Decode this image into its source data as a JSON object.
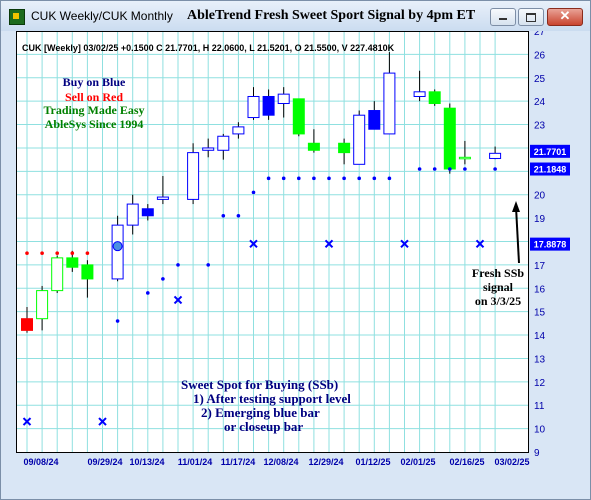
{
  "window": {
    "title": "CUK Weekly/CUK Monthly",
    "chart_title": "AbleTrend Fresh Sweet Sport Signal by 4pm ET",
    "close_glyph": "✕"
  },
  "colors": {
    "background": "#ffffff",
    "grid": "#8fe0e0",
    "blue": "#0000ff",
    "green": "#00ff00",
    "red": "#ff0000",
    "frame": "#000000",
    "text_navy": "#000080",
    "text_green": "#008000",
    "text_red": "#ff0000",
    "axis_label": "#0000aa"
  },
  "info_line": "CUK [Weekly] 03/02/25 +0.1500 C 21.7701, H 22.0600, L 21.5201, O 21.5500, V 227.4810K",
  "legend": {
    "line1": "Buy on Blue",
    "line2": "Sell on Red",
    "line3": "Trading Made Easy",
    "line4": "AbleSys Since 1994"
  },
  "annotation_ssb": {
    "line1": "Fresh SSb",
    "line2": "signal",
    "line3": "on 3/3/25"
  },
  "annotation_sweet": {
    "line1": "Sweet Spot for Buying (SSb)",
    "line2": "1) After testing support level",
    "line3": "2) Emerging blue bar",
    "line4": "or closeup bar"
  },
  "chart_data": {
    "type": "candlestick",
    "title": "AbleTrend Fresh Sweet Sport Signal by 4pm ET",
    "symbol": "CUK",
    "ylim": [
      9,
      27
    ],
    "y_ticks": [
      9,
      10,
      11,
      12,
      13,
      14,
      15,
      16,
      17,
      18,
      19,
      20,
      21,
      22,
      23,
      24,
      25,
      26,
      27
    ],
    "x_ticks": [
      "09/08/24",
      "09/29/24",
      "10/13/24",
      "11/01/24",
      "11/17/24",
      "12/08/24",
      "12/29/24",
      "01/12/25",
      "02/01/25",
      "02/16/25",
      "03/02/25"
    ],
    "price_labels": [
      {
        "value": 21.7701,
        "label": "21.7701",
        "color": "#0000ff"
      },
      {
        "value": 21.1848,
        "label": "21.1848",
        "color": "#0000ff"
      },
      {
        "value": 17.8878,
        "label": "17.8878",
        "color": "#0000ff"
      }
    ],
    "candles": [
      {
        "open": 14.2,
        "high": 15.2,
        "low": 14.1,
        "close": 14.7,
        "color": "red",
        "hollow": false
      },
      {
        "open": 14.7,
        "high": 16.1,
        "low": 14.2,
        "close": 15.9,
        "color": "green",
        "hollow": true
      },
      {
        "open": 15.9,
        "high": 17.4,
        "low": 15.8,
        "close": 17.3,
        "color": "green",
        "hollow": true
      },
      {
        "open": 17.3,
        "high": 17.6,
        "low": 16.7,
        "close": 16.9,
        "color": "green",
        "hollow": false
      },
      {
        "open": 17.0,
        "high": 17.2,
        "low": 15.6,
        "close": 16.4,
        "color": "green",
        "hollow": false
      },
      {
        "open": null,
        "high": null,
        "low": null,
        "close": null,
        "color": "none",
        "hollow": true
      },
      {
        "open": 16.4,
        "high": 19.1,
        "low": 16.3,
        "close": 18.7,
        "color": "blue",
        "hollow": true
      },
      {
        "open": 18.7,
        "high": 20.0,
        "low": 18.3,
        "close": 19.6,
        "color": "blue",
        "hollow": true
      },
      {
        "open": 19.1,
        "high": 19.6,
        "low": 18.9,
        "close": 19.4,
        "color": "blue",
        "hollow": false
      },
      {
        "open": 19.8,
        "high": 20.8,
        "low": 19.6,
        "close": 19.9,
        "color": "blue",
        "hollow": true
      },
      {
        "open": null,
        "high": null,
        "low": null,
        "close": null,
        "color": "none",
        "hollow": true
      },
      {
        "open": 19.8,
        "high": 22.2,
        "low": 19.6,
        "close": 21.8,
        "color": "blue",
        "hollow": true
      },
      {
        "open": 21.9,
        "high": 22.4,
        "low": 21.6,
        "close": 22.0,
        "color": "blue",
        "hollow": true
      },
      {
        "open": 21.9,
        "high": 22.6,
        "low": 21.5,
        "close": 22.5,
        "color": "blue",
        "hollow": true
      },
      {
        "open": 22.6,
        "high": 23.1,
        "low": 22.4,
        "close": 22.9,
        "color": "blue",
        "hollow": true
      },
      {
        "open": 23.3,
        "high": 24.6,
        "low": 23.2,
        "close": 24.2,
        "color": "blue",
        "hollow": true
      },
      {
        "open": 24.2,
        "high": 24.5,
        "low": 23.2,
        "close": 23.4,
        "color": "blue",
        "hollow": false
      },
      {
        "open": 23.9,
        "high": 24.6,
        "low": 23.3,
        "close": 24.3,
        "color": "blue",
        "hollow": true
      },
      {
        "open": 24.1,
        "high": 24.1,
        "low": 22.5,
        "close": 22.6,
        "color": "green",
        "hollow": false
      },
      {
        "open": 22.2,
        "high": 22.8,
        "low": 21.8,
        "close": 21.9,
        "color": "green",
        "hollow": false
      },
      {
        "open": null,
        "high": null,
        "low": null,
        "close": null,
        "color": "none",
        "hollow": true
      },
      {
        "open": 22.2,
        "high": 22.4,
        "low": 21.3,
        "close": 21.8,
        "color": "green",
        "hollow": false
      },
      {
        "open": 21.3,
        "high": 23.6,
        "low": 21.3,
        "close": 23.4,
        "color": "blue",
        "hollow": true
      },
      {
        "open": 22.8,
        "high": 24.0,
        "low": 22.8,
        "close": 23.6,
        "color": "blue",
        "hollow": false
      },
      {
        "open": 22.6,
        "high": 26.1,
        "low": 22.6,
        "close": 25.2,
        "color": "blue",
        "hollow": true
      },
      {
        "open": null,
        "high": null,
        "low": null,
        "close": null,
        "color": "none",
        "hollow": true
      },
      {
        "open": 24.2,
        "high": 25.3,
        "low": 24.0,
        "close": 24.4,
        "color": "blue",
        "hollow": true
      },
      {
        "open": 24.4,
        "high": 24.5,
        "low": 23.8,
        "close": 23.9,
        "color": "green",
        "hollow": false
      },
      {
        "open": 23.7,
        "high": 23.9,
        "low": 20.9,
        "close": 21.1,
        "color": "green",
        "hollow": false
      },
      {
        "open": 21.6,
        "high": 22.3,
        "low": 21.3,
        "close": 21.6,
        "color": "green",
        "hollow": true
      },
      {
        "open": null,
        "high": null,
        "low": null,
        "close": null,
        "color": "none",
        "hollow": true
      },
      {
        "open": 21.55,
        "high": 22.06,
        "low": 21.52,
        "close": 21.77,
        "color": "blue",
        "hollow": true
      }
    ],
    "sell_stops_red": [
      {
        "i": 0,
        "y": 17.5
      },
      {
        "i": 1,
        "y": 17.5
      },
      {
        "i": 2,
        "y": 17.5
      },
      {
        "i": 3,
        "y": 17.5
      },
      {
        "i": 4,
        "y": 17.5
      }
    ],
    "support_dots_blue": [
      {
        "i": 6,
        "y": 14.6
      },
      {
        "i": 8,
        "y": 15.8
      },
      {
        "i": 9,
        "y": 16.4
      },
      {
        "i": 10,
        "y": 17.0
      },
      {
        "i": 12,
        "y": 17.0
      },
      {
        "i": 13,
        "y": 19.1
      },
      {
        "i": 14,
        "y": 19.1
      },
      {
        "i": 15,
        "y": 20.1
      },
      {
        "i": 16,
        "y": 20.7
      },
      {
        "i": 17,
        "y": 20.7
      },
      {
        "i": 18,
        "y": 20.7
      },
      {
        "i": 19,
        "y": 20.7
      },
      {
        "i": 20,
        "y": 20.7
      },
      {
        "i": 21,
        "y": 20.7
      },
      {
        "i": 22,
        "y": 20.7
      },
      {
        "i": 23,
        "y": 20.7
      },
      {
        "i": 24,
        "y": 20.7
      },
      {
        "i": 26,
        "y": 21.1
      },
      {
        "i": 27,
        "y": 21.1
      },
      {
        "i": 28,
        "y": 21.1
      },
      {
        "i": 29,
        "y": 21.1
      },
      {
        "i": 31,
        "y": 21.1
      }
    ],
    "x_marks": [
      {
        "i": 0,
        "y": 10.3
      },
      {
        "i": 5,
        "y": 10.3
      },
      {
        "i": 10,
        "y": 15.5
      },
      {
        "i": 15,
        "y": 17.9
      },
      {
        "i": 20,
        "y": 17.9
      },
      {
        "i": 25,
        "y": 17.9
      },
      {
        "i": 30,
        "y": 17.9
      }
    ],
    "ssb_signal": {
      "i": 6,
      "y": 17.8
    }
  }
}
